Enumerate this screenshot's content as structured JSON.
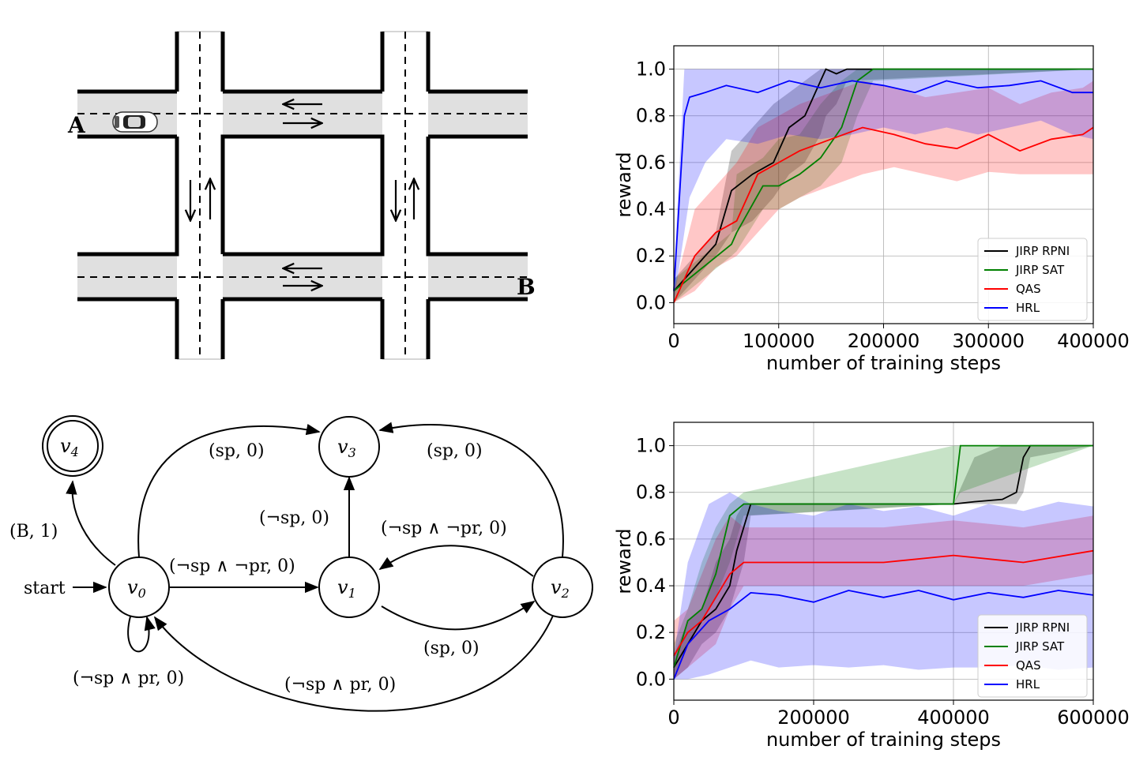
{
  "map": {
    "label_a": "A",
    "label_b": "B",
    "colors": {
      "road": "#e0e0e0",
      "edge": "#000000"
    }
  },
  "automaton": {
    "states": [
      {
        "id": "v0",
        "base": "v",
        "sub": "0"
      },
      {
        "id": "v1",
        "base": "v",
        "sub": "1"
      },
      {
        "id": "v2",
        "base": "v",
        "sub": "2"
      },
      {
        "id": "v3",
        "base": "v",
        "sub": "3"
      },
      {
        "id": "v4",
        "base": "v",
        "sub": "4"
      }
    ],
    "start_label": "start",
    "edges": {
      "v0_v4": "(B, 1)",
      "v0_v3": "(sp, 0)",
      "v2_v3": "(sp, 0)",
      "v1_v3": "(¬sp, 0)",
      "v2_v1": "(¬sp ∧ ¬pr, 0)",
      "v0_v1": "(¬sp ∧ ¬pr, 0)",
      "v1_v2": "(sp, 0)",
      "v0_self": "(¬sp ∧ pr, 0)",
      "v2_v0": "(¬sp ∧ pr, 0)"
    }
  },
  "chart_data": [
    {
      "type": "line",
      "xlabel": "number of training steps",
      "ylabel": "reward",
      "xlim": [
        0,
        400000
      ],
      "ylim": [
        -0.09,
        1.1
      ],
      "x_ticks": [
        "0",
        "100000",
        "200000",
        "300000",
        "400000"
      ],
      "y_ticks": [
        "0.0",
        "0.2",
        "0.4",
        "0.6",
        "0.8",
        "1.0"
      ],
      "grid": true,
      "legend_position": "lower-right",
      "series": [
        {
          "name": "JIRP RPNI",
          "color": "#000000",
          "x": [
            0,
            40000,
            55000,
            75000,
            95000,
            110000,
            125000,
            140000,
            145000,
            155000,
            165000,
            400000
          ],
          "y": [
            0.05,
            0.25,
            0.48,
            0.55,
            0.6,
            0.75,
            0.8,
            0.95,
            1.0,
            0.98,
            1.0,
            1.0
          ],
          "band_low": [
            0.0,
            0.2,
            0.3,
            0.35,
            0.45,
            0.55,
            0.6,
            0.72,
            0.8,
            0.85,
            0.95,
            1.0
          ],
          "band_high": [
            0.1,
            0.3,
            0.65,
            0.75,
            0.85,
            0.9,
            0.95,
            1.0,
            1.0,
            1.0,
            1.0,
            1.0
          ]
        },
        {
          "name": "JIRP SAT",
          "color": "#008000",
          "x": [
            0,
            55000,
            60000,
            85000,
            100000,
            120000,
            140000,
            160000,
            175000,
            190000,
            400000
          ],
          "y": [
            0.05,
            0.25,
            0.3,
            0.5,
            0.5,
            0.55,
            0.62,
            0.75,
            0.95,
            1.0,
            1.0
          ],
          "band_low": [
            0.0,
            0.2,
            0.22,
            0.4,
            0.4,
            0.45,
            0.5,
            0.6,
            0.8,
            0.95,
            1.0
          ],
          "band_high": [
            0.1,
            0.3,
            0.55,
            0.62,
            0.7,
            0.72,
            0.85,
            0.95,
            1.0,
            1.0,
            1.0
          ]
        },
        {
          "name": "QAS",
          "color": "#ff0000",
          "x": [
            0,
            20000,
            40000,
            60000,
            80000,
            100000,
            120000,
            150000,
            180000,
            210000,
            240000,
            270000,
            300000,
            330000,
            360000,
            390000,
            400000
          ],
          "y": [
            0.0,
            0.2,
            0.3,
            0.35,
            0.55,
            0.6,
            0.65,
            0.7,
            0.75,
            0.72,
            0.68,
            0.66,
            0.72,
            0.65,
            0.7,
            0.72,
            0.75
          ],
          "band_low": [
            0.0,
            0.05,
            0.15,
            0.2,
            0.3,
            0.4,
            0.45,
            0.5,
            0.55,
            0.58,
            0.55,
            0.52,
            0.56,
            0.55,
            0.55,
            0.55,
            0.55
          ],
          "band_high": [
            0.05,
            0.4,
            0.5,
            0.6,
            0.75,
            0.8,
            0.85,
            0.9,
            0.95,
            0.92,
            0.88,
            0.9,
            0.92,
            0.85,
            0.9,
            0.92,
            0.95
          ]
        },
        {
          "name": "HRL",
          "color": "#0000ff",
          "x": [
            0,
            10000,
            15000,
            30000,
            50000,
            80000,
            110000,
            140000,
            170000,
            200000,
            230000,
            260000,
            290000,
            320000,
            350000,
            380000,
            400000
          ],
          "y": [
            0.05,
            0.8,
            0.88,
            0.9,
            0.93,
            0.9,
            0.95,
            0.92,
            0.95,
            0.93,
            0.9,
            0.95,
            0.92,
            0.93,
            0.95,
            0.9,
            0.9
          ],
          "band_low": [
            0.0,
            0.3,
            0.45,
            0.6,
            0.7,
            0.68,
            0.72,
            0.7,
            0.72,
            0.75,
            0.72,
            0.75,
            0.72,
            0.75,
            0.78,
            0.72,
            0.7
          ],
          "band_high": [
            0.1,
            1.0,
            1.0,
            1.0,
            1.0,
            1.0,
            1.0,
            1.0,
            1.0,
            1.0,
            1.0,
            1.0,
            1.0,
            1.0,
            1.0,
            1.0,
            1.0
          ]
        }
      ]
    },
    {
      "type": "line",
      "xlabel": "number of training steps",
      "ylabel": "reward",
      "xlim": [
        0,
        600000
      ],
      "ylim": [
        -0.09,
        1.1
      ],
      "x_ticks": [
        "0",
        "200000",
        "400000",
        "600000"
      ],
      "y_ticks": [
        "0.0",
        "0.2",
        "0.4",
        "0.6",
        "0.8",
        "1.0"
      ],
      "grid": true,
      "legend_position": "lower-right",
      "series": [
        {
          "name": "JIRP RPNI",
          "color": "#000000",
          "x": [
            0,
            20000,
            40000,
            60000,
            80000,
            90000,
            100000,
            110000,
            400000,
            430000,
            470000,
            490000,
            500000,
            510000,
            600000
          ],
          "y": [
            0.05,
            0.15,
            0.25,
            0.3,
            0.4,
            0.55,
            0.65,
            0.75,
            0.75,
            0.76,
            0.77,
            0.8,
            0.95,
            1.0,
            1.0
          ],
          "band_low": [
            0.0,
            0.05,
            0.15,
            0.2,
            0.3,
            0.4,
            0.5,
            0.7,
            0.75,
            0.75,
            0.75,
            0.75,
            0.8,
            0.95,
            1.0
          ],
          "band_high": [
            0.1,
            0.25,
            0.3,
            0.5,
            0.6,
            0.7,
            0.75,
            0.75,
            0.75,
            0.95,
            1.0,
            1.0,
            1.0,
            1.0,
            1.0
          ]
        },
        {
          "name": "JIRP SAT",
          "color": "#008000",
          "x": [
            0,
            20000,
            40000,
            60000,
            80000,
            100000,
            400000,
            410000,
            600000
          ],
          "y": [
            0.05,
            0.25,
            0.3,
            0.45,
            0.7,
            0.75,
            0.75,
            1.0,
            1.0
          ],
          "band_low": [
            0.0,
            0.15,
            0.25,
            0.35,
            0.5,
            0.7,
            0.75,
            0.8,
            1.0
          ],
          "band_high": [
            0.15,
            0.3,
            0.5,
            0.65,
            0.75,
            0.8,
            1.0,
            1.0,
            1.0
          ]
        },
        {
          "name": "QAS",
          "color": "#ff0000",
          "x": [
            0,
            20000,
            40000,
            60000,
            80000,
            100000,
            200000,
            300000,
            400000,
            500000,
            600000
          ],
          "y": [
            0.1,
            0.2,
            0.25,
            0.35,
            0.45,
            0.5,
            0.5,
            0.5,
            0.53,
            0.5,
            0.55
          ],
          "band_low": [
            0.0,
            0.05,
            0.1,
            0.15,
            0.3,
            0.4,
            0.4,
            0.4,
            0.4,
            0.4,
            0.45
          ],
          "band_high": [
            0.25,
            0.3,
            0.45,
            0.6,
            0.7,
            0.65,
            0.65,
            0.65,
            0.68,
            0.65,
            0.7
          ]
        },
        {
          "name": "HRL",
          "color": "#0000ff",
          "x": [
            0,
            20000,
            50000,
            80000,
            110000,
            150000,
            200000,
            250000,
            300000,
            350000,
            400000,
            450000,
            500000,
            550000,
            600000
          ],
          "y": [
            0.0,
            0.15,
            0.25,
            0.3,
            0.37,
            0.36,
            0.33,
            0.38,
            0.35,
            0.38,
            0.34,
            0.37,
            0.35,
            0.38,
            0.36
          ],
          "band_low": [
            0.0,
            0.0,
            0.02,
            0.05,
            0.08,
            0.05,
            0.06,
            0.05,
            0.06,
            0.04,
            0.05,
            0.05,
            0.06,
            0.04,
            0.05
          ],
          "band_high": [
            0.1,
            0.5,
            0.75,
            0.8,
            0.75,
            0.72,
            0.7,
            0.75,
            0.72,
            0.74,
            0.7,
            0.75,
            0.72,
            0.76,
            0.74
          ]
        }
      ]
    }
  ]
}
